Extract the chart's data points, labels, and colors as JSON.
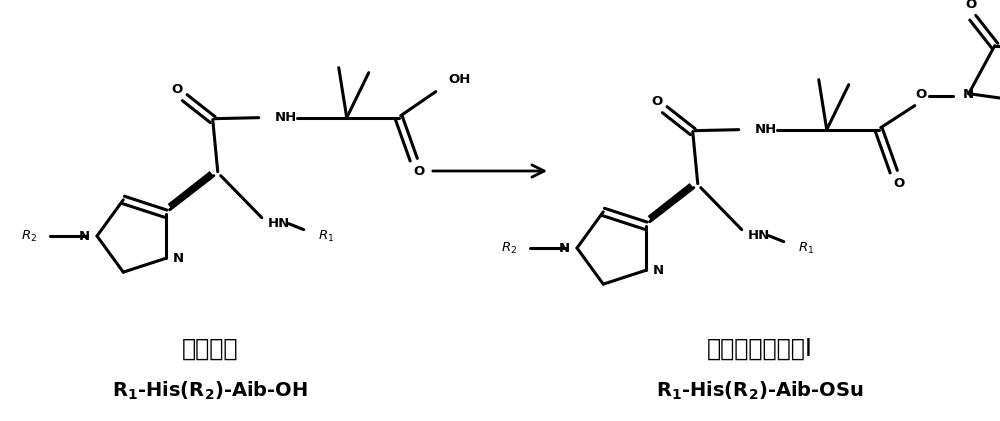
{
  "background_color": "#ffffff",
  "figsize": [
    10.0,
    4.21
  ],
  "dpi": 100,
  "left_label_chinese": "二肽片段",
  "left_label_formula": "$\\mathbf{R_1}$-His($\\mathbf{R_2}$)-Aib-OH",
  "right_label_chinese": "二肽片段衍生物I",
  "right_label_formula": "$\\mathbf{R_1}$-His($\\mathbf{R_2}$)-Aib-OSu",
  "text_color": "#000000",
  "line_color": "#000000",
  "line_width": 2.2,
  "chinese_fontsize": 17,
  "formula_fontsize": 14
}
